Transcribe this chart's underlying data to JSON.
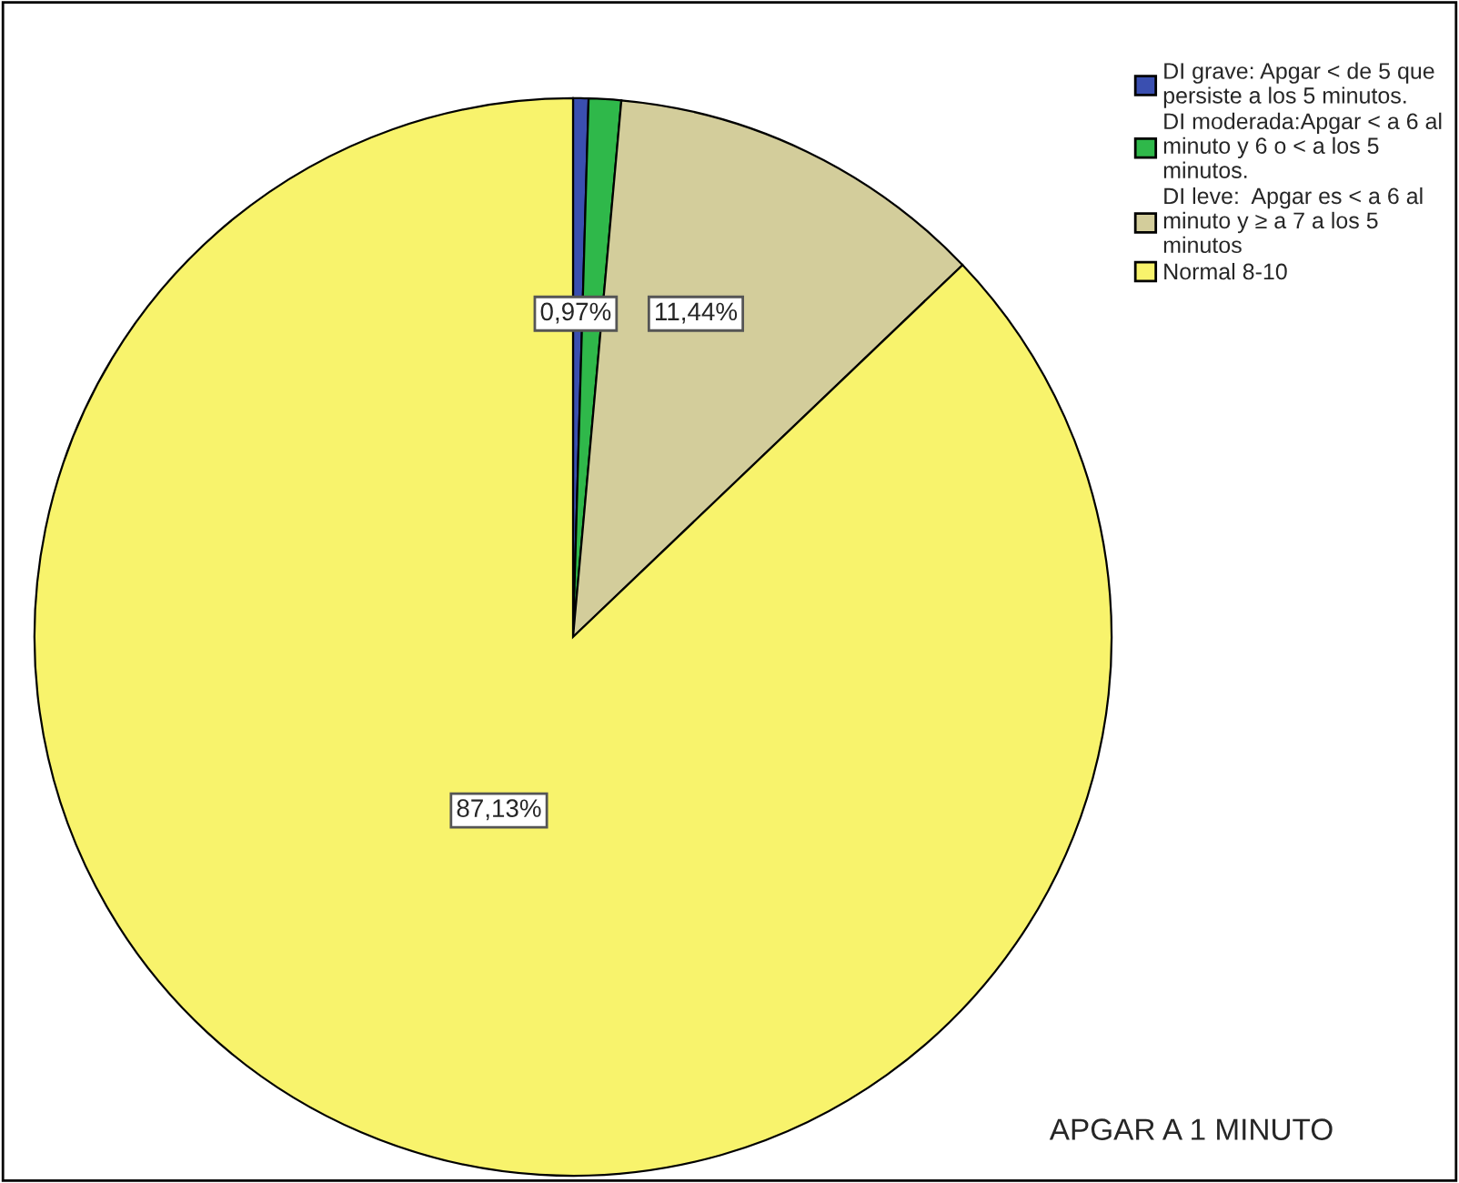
{
  "chart_data": {
    "type": "pie",
    "title": "APGAR A 1 MINUTO",
    "categories": [
      "DI grave: Apgar < de 5 que\npersiste a los 5 minutos.",
      "DI moderada:Apgar < a 6 al\nminuto y 6 o < a los 5\nminutos.",
      "DI leve:  Apgar es < a 6 al\nminuto y ≥ a 7 a los 5\nminutos",
      "Normal 8-10"
    ],
    "values": [
      0.46,
      0.97,
      11.44,
      87.13
    ],
    "colors": [
      "#3a4fb0",
      "#2fb84a",
      "#d3cd9b",
      "#f8f36c"
    ],
    "value_labels": [
      null,
      "0,97%",
      "11,44%",
      "87,13%"
    ],
    "legend": "top right"
  }
}
